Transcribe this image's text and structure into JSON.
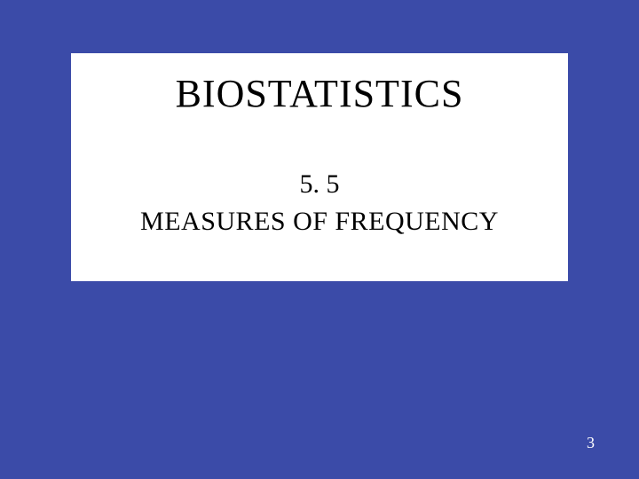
{
  "slide": {
    "title": "BIOSTATISTICS",
    "section_number": "5. 5",
    "subtitle": "MEASURES OF FREQUENCY",
    "page_number": "3",
    "background_color": "#3b4ba8",
    "content_background": "#ffffff",
    "text_color": "#000000",
    "page_number_color": "#ffffff",
    "title_fontsize": 44,
    "body_fontsize": 30,
    "page_number_fontsize": 18,
    "font_family": "Times New Roman"
  }
}
